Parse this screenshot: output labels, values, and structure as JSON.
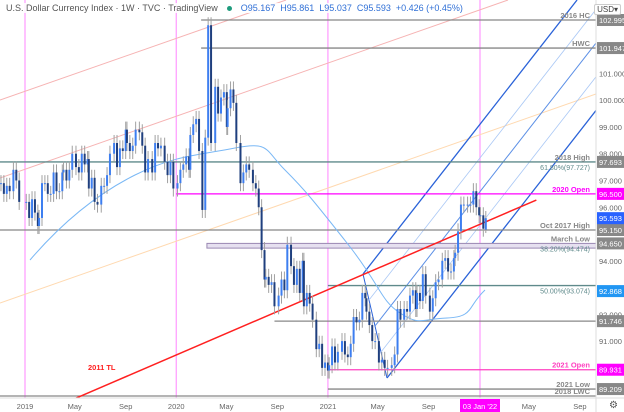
{
  "header": {
    "title": "U.S. Dollar Currency Index · 1W · TVC · TradingView",
    "open": "O95.167",
    "high": "H95.861",
    "low": "L95.037",
    "close": "C95.593",
    "change": "+0.426 (+0.45%)"
  },
  "currency_button": "USD",
  "chart_data": {
    "type": "candlestick",
    "title": "U.S. Dollar Currency Index · 1W · TVC · TradingView",
    "ylim": [
      88.8,
      104.0
    ],
    "y_ticks": [
      91.0,
      92.0,
      94.0,
      96.0,
      97.0,
      98.0,
      99.0,
      100.0,
      101.0
    ],
    "x_ticks": [
      {
        "date": "2019-01-01",
        "label": "2019"
      },
      {
        "date": "2019-05-01",
        "label": "May"
      },
      {
        "date": "2019-09-01",
        "label": "Sep"
      },
      {
        "date": "2020-01-01",
        "label": "2020"
      },
      {
        "date": "2020-05-01",
        "label": "May"
      },
      {
        "date": "2020-09-01",
        "label": "Sep"
      },
      {
        "date": "2021-01-01",
        "label": "2021"
      },
      {
        "date": "2021-05-01",
        "label": "May"
      },
      {
        "date": "2021-09-01",
        "label": "Sep"
      },
      {
        "date": "2022-01-03",
        "label": "03 Jan '22",
        "highlight": true
      },
      {
        "date": "2022-05-01",
        "label": "May"
      },
      {
        "date": "2022-09-01",
        "label": "Sep"
      }
    ],
    "weekly_closes": {
      "2018-11": [
        96.9,
        96.5,
        96.8,
        96.6
      ],
      "2018-12": [
        97.4,
        97.0,
        96.2
      ],
      "2019-01": [
        96.2,
        95.6,
        96.3,
        95.8,
        95.3
      ],
      "2019-02": [
        95.6,
        96.9,
        96.9,
        96.5
      ],
      "2019-03": [
        96.5,
        97.3,
        96.6,
        96.6,
        97.3
      ],
      "2019-04": [
        97.4,
        97.0,
        97.4,
        98.0
      ],
      "2019-05": [
        97.5,
        97.3,
        98.0,
        97.6,
        97.8
      ],
      "2019-06": [
        96.7,
        97.1,
        96.2,
        96.1
      ],
      "2019-07": [
        96.8,
        96.8,
        97.2,
        98.0
      ],
      "2019-08": [
        98.4,
        97.5,
        98.2,
        98.1,
        98.9
      ],
      "2019-09": [
        98.4,
        98.1,
        98.3,
        98.9
      ],
      "2019-10": [
        98.8,
        98.3,
        97.3,
        97.8
      ],
      "2019-11": [
        97.3,
        98.4,
        98.2,
        98.3
      ],
      "2019-12": [
        97.7,
        97.2,
        97.7,
        96.7
      ],
      "2020-01": [
        96.9,
        97.4,
        97.6,
        97.9,
        97.4
      ],
      "2020-02": [
        98.7,
        99.1,
        99.3,
        98.1
      ],
      "2020-03": [
        95.9,
        98.6,
        102.8,
        98.4
      ],
      "2020-04": [
        100.5,
        99.5,
        100.1,
        100.3,
        99.0
      ],
      "2020-05": [
        99.7,
        100.4,
        99.9,
        98.4
      ],
      "2020-06": [
        96.9,
        97.3,
        97.6,
        97.4
      ],
      "2020-07": [
        96.9,
        96.7,
        96.0,
        94.4,
        93.3
      ],
      "2020-08": [
        93.4,
        93.1,
        93.2,
        92.3
      ],
      "2020-09": [
        92.7,
        93.3,
        92.9,
        94.6
      ],
      "2020-10": [
        93.8,
        93.1,
        93.7,
        92.8,
        94.0
      ],
      "2020-11": [
        92.3,
        92.8,
        92.4,
        91.8
      ],
      "2020-12": [
        90.7,
        90.9,
        90.0,
        90.2,
        89.9
      ],
      "2021-01": [
        90.1,
        90.8,
        90.2,
        90.6
      ],
      "2021-02": [
        91.0,
        90.5,
        90.4,
        90.9
      ],
      "2021-03": [
        91.9,
        91.7,
        91.8,
        92.8,
        92.6
      ],
      "2021-04": [
        92.1,
        91.6,
        91.0,
        91.0
      ],
      "2021-05": [
        90.2,
        90.3,
        90.0,
        90.0
      ],
      "2021-06": [
        90.1,
        90.5,
        92.2,
        91.8
      ],
      "2021-07": [
        92.2,
        92.1,
        92.7,
        92.9,
        92.2
      ],
      "2021-08": [
        92.8,
        92.5,
        93.5,
        92.7
      ],
      "2021-09": [
        92.1,
        92.6,
        93.2,
        93.3
      ],
      "2021-10": [
        94.0,
        94.1,
        93.6,
        93.6,
        94.1
      ],
      "2021-11": [
        94.3,
        95.1,
        96.1,
        96.1
      ],
      "2021-12": [
        96.1,
        96.1,
        96.6,
        96.0,
        95.7
      ],
      "2022-01": [
        95.7,
        95.2
      ]
    },
    "last_candle": {
      "open": 95.167,
      "high": 95.861,
      "low": 95.037,
      "close": 95.593
    },
    "levels": [
      {
        "price": 102.995,
        "label": "2016 HC",
        "tag": "102.995",
        "color": "#888888",
        "from": "2020-03-01"
      },
      {
        "price": 101.947,
        "label": "HWC",
        "tag": "101.947",
        "color": "#888888",
        "from": "2020-03-01"
      },
      {
        "price": 97.693,
        "label": "2018 High",
        "tag": "97.693",
        "color": "#5f8a8b",
        "from": "2018-10-20",
        "fib": "61.80%(97.727)"
      },
      {
        "price": 96.5,
        "label": "2020 Open",
        "tag": "96.500",
        "color": "#ff00ff",
        "from": "2020-01-01"
      },
      {
        "price": 95.15,
        "label": "Oct 2017 High",
        "tag": "95.150",
        "color": "#888888",
        "from": "2018-10-20"
      },
      {
        "price": 94.65,
        "label": "March Low",
        "tag": "94.650",
        "color": "#9a88b3",
        "from": "2020-03-15",
        "fib": "38.20%(94.474)"
      },
      {
        "price": 93.074,
        "label": "",
        "tag": "",
        "color": "#5f8a8b",
        "from": "2021-01-01",
        "fib": "50.00%(93.074)"
      },
      {
        "price": 91.746,
        "label": "",
        "tag": "91.746",
        "color": "#888888",
        "from": "2020-08-25"
      },
      {
        "price": 89.931,
        "label": "2021 Open",
        "tag": "89.931",
        "color": "#ff40c0",
        "from": "2021-01-01"
      },
      {
        "price": 89.209,
        "label": "2021 Low",
        "tag": "89.209",
        "color": "#888888",
        "from": "2021-01-01"
      },
      {
        "price": 88.95,
        "label": "2018 LWC",
        "tag": "",
        "color": "#888888",
        "from": "2018-10-20"
      }
    ],
    "price_tags": {
      "last": "95.593",
      "last_color": "#2962ff",
      "ma": "92.868",
      "ma_color": "#2196f3"
    },
    "trendline": {
      "label": "2011 TL",
      "color": "#ff2020",
      "from": {
        "date": "2019-02-15",
        "price": 88.35
      },
      "to": {
        "date": "2022-05-19",
        "price": 96.27
      }
    },
    "colors": {
      "up": "#3d7ef0",
      "down": "#1f3f7e",
      "wick": "#a0a0a0",
      "year_line": "#ff99ff"
    }
  }
}
